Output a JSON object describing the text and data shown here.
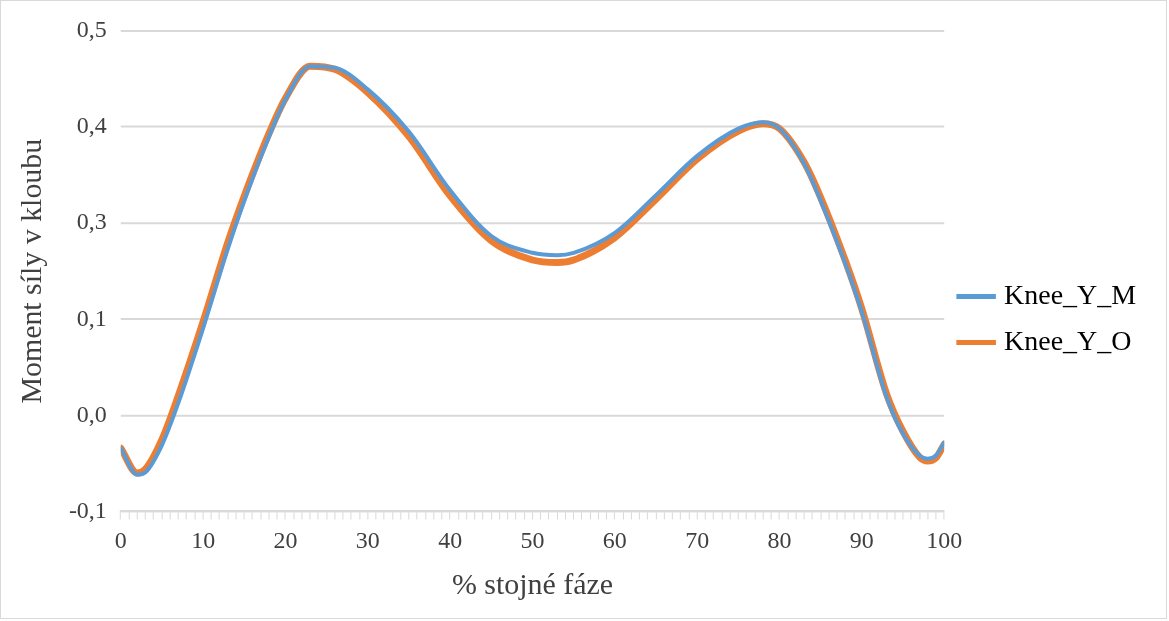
{
  "chart_data": {
    "type": "line",
    "xlabel": "% stojné fáze",
    "ylabel": "Moment síly v kloubu",
    "x": [
      0,
      2,
      3,
      5,
      7,
      10,
      13,
      15,
      18,
      20,
      23,
      26,
      30,
      35,
      40,
      45,
      50,
      53,
      55,
      60,
      65,
      70,
      75,
      78,
      80,
      83,
      85,
      88,
      90,
      93,
      95,
      97,
      98,
      99,
      100
    ],
    "series": [
      {
        "name": "Knee_Y_M",
        "color": "#5b9bd5",
        "values": [
          -0.021,
          -0.054,
          -0.051,
          -0.017,
          0.036,
          0.129,
          0.228,
          0.288,
          0.368,
          0.414,
          0.456,
          0.454,
          0.427,
          0.374,
          0.301,
          0.244,
          0.223,
          0.22,
          0.223,
          0.248,
          0.295,
          0.344,
          0.378,
          0.386,
          0.378,
          0.334,
          0.288,
          0.209,
          0.149,
          0.043,
          -0.003,
          -0.03,
          -0.034,
          -0.03,
          -0.014
        ]
      },
      {
        "name": "Knee_Y_O",
        "color": "#ed7d31",
        "values": [
          -0.021,
          -0.052,
          -0.047,
          -0.01,
          0.045,
          0.137,
          0.236,
          0.294,
          0.372,
          0.416,
          0.456,
          0.452,
          0.423,
          0.368,
          0.294,
          0.238,
          0.214,
          0.211,
          0.214,
          0.242,
          0.29,
          0.34,
          0.375,
          0.384,
          0.378,
          0.336,
          0.292,
          0.213,
          0.153,
          0.047,
          0.0,
          -0.032,
          -0.037,
          -0.033,
          -0.016
        ]
      }
    ],
    "xlim": [
      0,
      100
    ],
    "xticks": [
      0,
      {
        "value": 1,
        "label": null
      },
      {
        "value": 2,
        "label": null
      },
      {
        "value": 3,
        "label": null
      },
      {
        "value": 4,
        "label": null
      },
      {
        "value": 5,
        "label": null
      },
      {
        "value": 6,
        "label": null
      },
      {
        "value": 7,
        "label": null
      },
      {
        "value": 8,
        "label": null
      },
      {
        "value": 9,
        "label": null
      },
      10,
      {
        "value": 11,
        "label": null
      },
      {
        "value": 12,
        "label": null
      },
      {
        "value": 13,
        "label": null
      },
      {
        "value": 14,
        "label": null
      },
      {
        "value": 15,
        "label": null
      },
      {
        "value": 16,
        "label": null
      },
      {
        "value": 17,
        "label": null
      },
      {
        "value": 18,
        "label": null
      },
      {
        "value": 19,
        "label": null
      },
      20,
      {
        "value": 21,
        "label": null
      },
      {
        "value": 22,
        "label": null
      },
      {
        "value": 23,
        "label": null
      },
      {
        "value": 24,
        "label": null
      },
      {
        "value": 25,
        "label": null
      },
      {
        "value": 26,
        "label": null
      },
      {
        "value": 27,
        "label": null
      },
      {
        "value": 28,
        "label": null
      },
      {
        "value": 29,
        "label": null
      },
      30,
      {
        "value": 31,
        "label": null
      },
      {
        "value": 32,
        "label": null
      },
      {
        "value": 33,
        "label": null
      },
      {
        "value": 34,
        "label": null
      },
      {
        "value": 35,
        "label": null
      },
      {
        "value": 36,
        "label": null
      },
      {
        "value": 37,
        "label": null
      },
      {
        "value": 38,
        "label": null
      },
      {
        "value": 39,
        "label": null
      },
      40,
      {
        "value": 41,
        "label": null
      },
      {
        "value": 42,
        "label": null
      },
      {
        "value": 43,
        "label": null
      },
      {
        "value": 44,
        "label": null
      },
      {
        "value": 45,
        "label": null
      },
      {
        "value": 46,
        "label": null
      },
      {
        "value": 47,
        "label": null
      },
      {
        "value": 48,
        "label": null
      },
      {
        "value": 49,
        "label": null
      },
      50,
      {
        "value": 51,
        "label": null
      },
      {
        "value": 52,
        "label": null
      },
      {
        "value": 53,
        "label": null
      },
      {
        "value": 54,
        "label": null
      },
      {
        "value": 55,
        "label": null
      },
      {
        "value": 56,
        "label": null
      },
      {
        "value": 57,
        "label": null
      },
      {
        "value": 58,
        "label": null
      },
      {
        "value": 59,
        "label": null
      },
      60,
      {
        "value": 61,
        "label": null
      },
      {
        "value": 62,
        "label": null
      },
      {
        "value": 63,
        "label": null
      },
      {
        "value": 64,
        "label": null
      },
      {
        "value": 65,
        "label": null
      },
      {
        "value": 66,
        "label": null
      },
      {
        "value": 67,
        "label": null
      },
      {
        "value": 68,
        "label": null
      },
      {
        "value": 69,
        "label": null
      },
      70,
      {
        "value": 71,
        "label": null
      },
      {
        "value": 72,
        "label": null
      },
      {
        "value": 73,
        "label": null
      },
      {
        "value": 74,
        "label": null
      },
      {
        "value": 75,
        "label": null
      },
      {
        "value": 76,
        "label": null
      },
      {
        "value": 77,
        "label": null
      },
      {
        "value": 78,
        "label": null
      },
      {
        "value": 79,
        "label": null
      },
      80,
      {
        "value": 81,
        "label": null
      },
      {
        "value": 82,
        "label": null
      },
      {
        "value": 83,
        "label": null
      },
      {
        "value": 84,
        "label": null
      },
      {
        "value": 85,
        "label": null
      },
      {
        "value": 86,
        "label": null
      },
      {
        "value": 87,
        "label": null
      },
      {
        "value": 88,
        "label": null
      },
      {
        "value": 89,
        "label": null
      },
      90,
      {
        "value": 91,
        "label": null
      },
      {
        "value": 92,
        "label": null
      },
      {
        "value": 93,
        "label": null
      },
      {
        "value": 94,
        "label": null
      },
      {
        "value": 95,
        "label": null
      },
      {
        "value": 96,
        "label": null
      },
      {
        "value": 97,
        "label": null
      },
      {
        "value": 98,
        "label": null
      },
      {
        "value": 99,
        "label": null
      },
      100
    ],
    "ylim": [
      -0.1,
      0.5
    ],
    "yticks": [
      {
        "value": -0.1,
        "label": "-0,1"
      },
      {
        "value": 0.02,
        "label": "0,0"
      },
      {
        "value": 0.14,
        "label": "0,1"
      },
      {
        "value": 0.26,
        "label": "0,3"
      },
      {
        "value": 0.38,
        "label": "0,4"
      },
      {
        "value": 0.5,
        "label": "0,5"
      }
    ],
    "grid": "y",
    "legend": "right",
    "marker": "none",
    "line_style": "solid"
  }
}
